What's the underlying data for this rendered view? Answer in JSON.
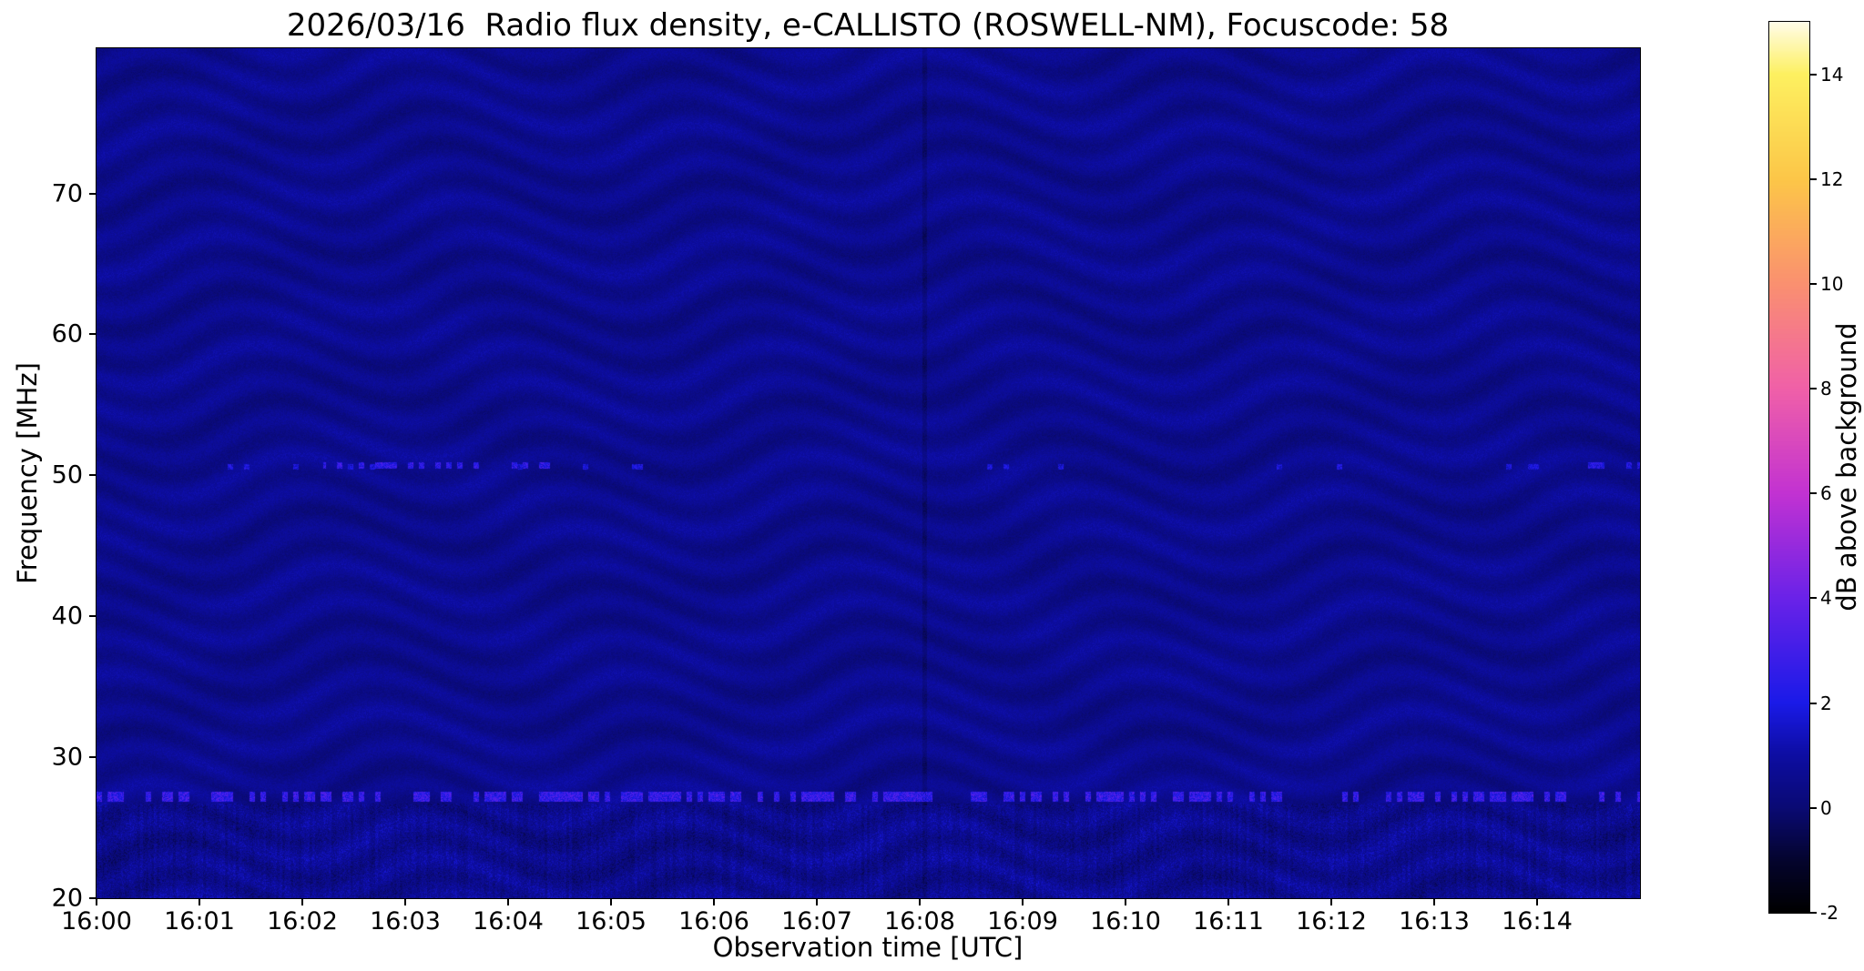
{
  "figure": {
    "background_color": "#ffffff",
    "text_color": "#000000"
  },
  "chart_data": {
    "type": "heatmap",
    "title": "2026/03/16  Radio flux density, e-CALLISTO (ROSWELL-NM), Focuscode: 58",
    "xlabel": "Observation time [UTC]",
    "ylabel": "Frequency [MHz]",
    "colorbar_label": "dB above background",
    "x_ticks": [
      "16:00",
      "16:01",
      "16:02",
      "16:03",
      "16:04",
      "16:05",
      "16:06",
      "16:07",
      "16:08",
      "16:09",
      "16:10",
      "16:11",
      "16:12",
      "16:13",
      "16:14"
    ],
    "x_range_minutes": [
      0,
      15
    ],
    "y_ticks_mhz": [
      20,
      30,
      40,
      50,
      60,
      70
    ],
    "y_range_mhz": [
      20,
      80.3
    ],
    "colorbar_ticks_db": [
      14,
      12,
      10,
      8,
      6,
      4,
      2,
      0,
      -2
    ],
    "value_range_db": [
      -2,
      15
    ],
    "grid": false,
    "legend": false,
    "colormap_stops": [
      {
        "v": -2.0,
        "color": "#000000"
      },
      {
        "v": -1.0,
        "color": "#04042e"
      },
      {
        "v": 0.0,
        "color": "#0a0a74"
      },
      {
        "v": 1.0,
        "color": "#0d0da2"
      },
      {
        "v": 2.0,
        "color": "#1a1ae8"
      },
      {
        "v": 4.0,
        "color": "#6a22e8"
      },
      {
        "v": 6.0,
        "color": "#c232d2"
      },
      {
        "v": 8.0,
        "color": "#f060a8"
      },
      {
        "v": 10.0,
        "color": "#fa9070"
      },
      {
        "v": 12.0,
        "color": "#fcc648"
      },
      {
        "v": 14.0,
        "color": "#fdf060"
      },
      {
        "v": 15.0,
        "color": "#fffce8"
      }
    ],
    "texture": {
      "base_db": 0.55,
      "noise_db": 0.28,
      "wave_amp_db": 0.3,
      "wave_freq_period_mhz": 2.6,
      "wave_time_period_min": 2.5,
      "wave_phase_amp": 3.5,
      "seed": 42
    },
    "features": [
      {
        "name": "faint-speckles-50.6mhz",
        "freq_mhz": 50.6,
        "width_mhz": 0.35,
        "t_start_min": 0,
        "t_end_min": 15,
        "peak_db": 1.8,
        "density": 0.06
      },
      {
        "name": "speckle-line-50.7mhz",
        "freq_mhz": 50.7,
        "width_mhz": 0.45,
        "t_start_min": 2.2,
        "t_end_min": 4.7,
        "peak_db": 2.4,
        "density": 0.38
      },
      {
        "name": "speckle-line-50.7mhz-late",
        "freq_mhz": 50.7,
        "width_mhz": 0.4,
        "t_start_min": 14.5,
        "t_end_min": 15,
        "peak_db": 2.1,
        "density": 0.3
      },
      {
        "name": "interference-band-27mhz",
        "freq_mhz": 27.2,
        "width_mhz": 0.7,
        "t_start_min": 0,
        "t_end_min": 15,
        "peak_db": 2.6,
        "density": 0.55
      },
      {
        "name": "low-frequency-noise-band",
        "freq_lo": 20,
        "freq_hi": 26.7,
        "extra_noise_db": 0.5
      },
      {
        "name": "dark-vertical-line",
        "t_min": 8.05,
        "width_min": 0.04,
        "delta_db": -0.5
      }
    ]
  }
}
